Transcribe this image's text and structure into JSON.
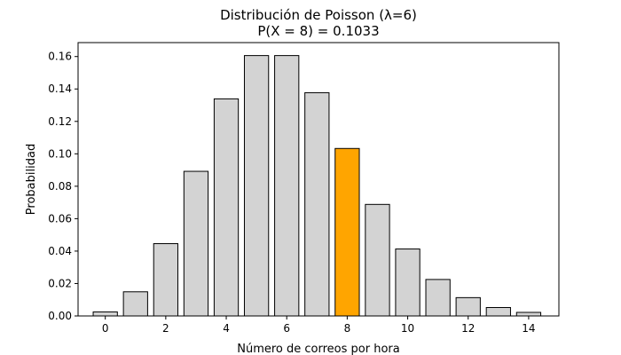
{
  "chart_data": {
    "type": "bar",
    "title": "Distribución de Poisson (λ=6)",
    "subtitle": "P(X = 8) = 0.1033",
    "xlabel": "Número de correos por hora",
    "ylabel": "Probabilidad",
    "categories": [
      0,
      1,
      2,
      3,
      4,
      5,
      6,
      7,
      8,
      9,
      10,
      11,
      12,
      13,
      14
    ],
    "values": [
      0.0025,
      0.0149,
      0.0446,
      0.0892,
      0.1339,
      0.1606,
      0.1606,
      0.1377,
      0.1033,
      0.0688,
      0.0413,
      0.0225,
      0.0113,
      0.0052,
      0.0022
    ],
    "highlight_index": 8,
    "colors": {
      "bar": "#d3d3d3",
      "highlight": "#ffa500",
      "edge": "#000000"
    },
    "xlim": [
      -0.9,
      15.0
    ],
    "ylim": [
      0,
      0.1686
    ],
    "xticks": [
      0,
      2,
      4,
      6,
      8,
      10,
      12,
      14
    ],
    "yticks": [
      0.0,
      0.02,
      0.04,
      0.06,
      0.08,
      0.1,
      0.12,
      0.14,
      0.16
    ],
    "ytick_labels": [
      "0.00",
      "0.02",
      "0.04",
      "0.06",
      "0.08",
      "0.10",
      "0.12",
      "0.14",
      "0.16"
    ],
    "grid": false,
    "legend": "none"
  }
}
